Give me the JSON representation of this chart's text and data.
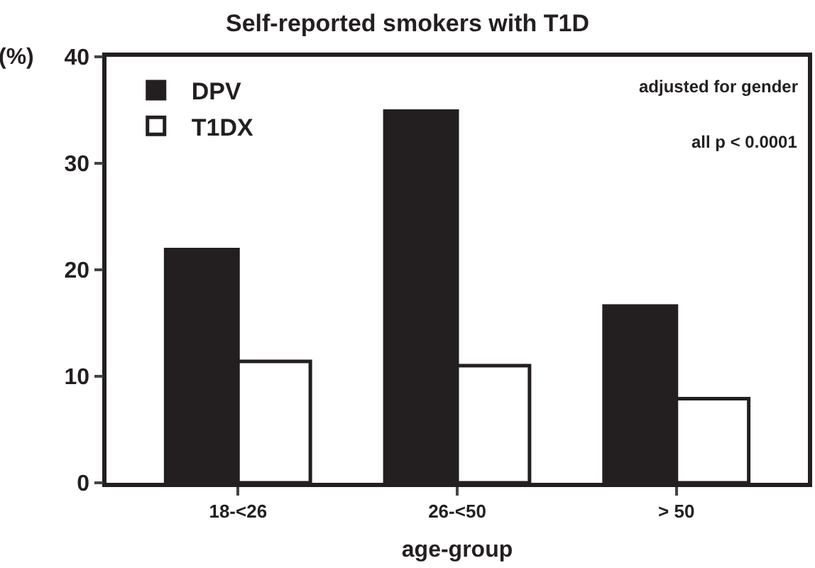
{
  "chart_data": {
    "type": "bar",
    "title": "Self-reported smokers with T1D",
    "xlabel": "age-group",
    "ylabel": "(%)",
    "categories": [
      "18-<26",
      "26-<50",
      "> 50"
    ],
    "series": [
      {
        "name": "DPV",
        "color": "#231f20",
        "values": [
          21.9,
          34.9,
          16.6
        ]
      },
      {
        "name": "T1DX",
        "color": "#ffffff",
        "values": [
          11.4,
          11.0,
          7.9
        ]
      }
    ],
    "ylim": [
      0,
      40
    ],
    "yticks": [
      0,
      10,
      20,
      30,
      40
    ],
    "legend": "top left",
    "annotations": [
      "adjusted for gender",
      "all p < 0.0001"
    ]
  }
}
